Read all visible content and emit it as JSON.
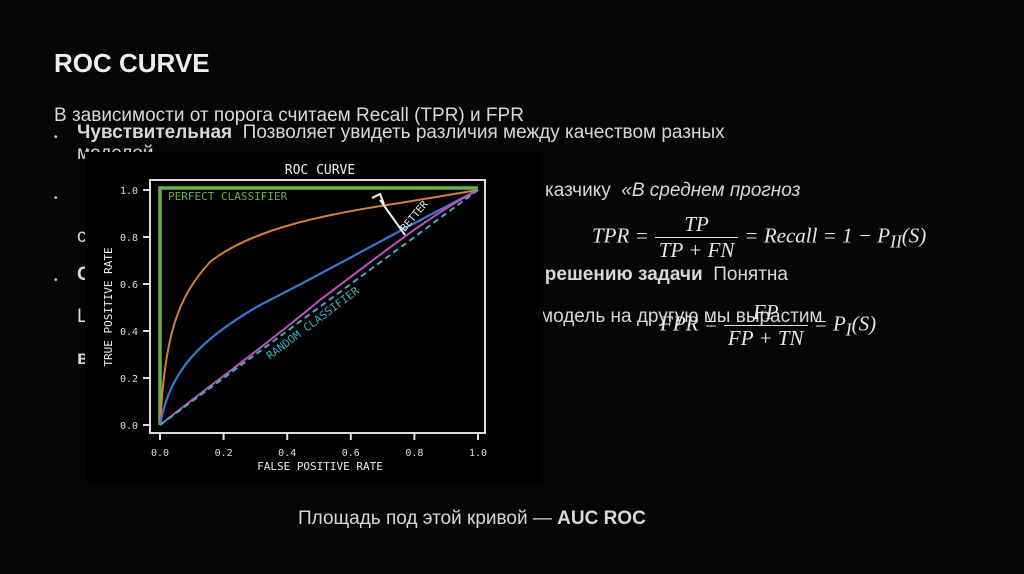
{
  "header": {
    "title": "ROC CURVE"
  },
  "intro": "В зависимости от порога считаем Recall (TPR) и FPR",
  "bullets": [
    {
      "bold": "Чувствительная",
      "text": "Позволяет увидеть различия между качеством разных",
      "more": "моделей"
    },
    {
      "text": "казчику",
      "italic": "«В среднем прогноз",
      "more": "с"
    },
    {
      "bold": "к решению задачи",
      "text": "Понятна",
      "line2": "модель на другую мы вырастим",
      "start1": "С",
      "start2": "L",
      "start3": "в"
    }
  ],
  "formulas": {
    "tpr": {
      "lhs": "TPR =",
      "num": "TP",
      "den": "TP + FN",
      "rhs": "= Recall = 1 − P",
      "sub": "II",
      "tail": "(S)"
    },
    "fpr": {
      "lhs": "FPR =",
      "num": "FP",
      "den": "FP + TN",
      "rhs": "= P",
      "sub": "I",
      "tail": "(S)"
    }
  },
  "figure": {
    "title": "ROC CURVE",
    "xlabel": "FALSE POSITIVE RATE",
    "ylabel": "TRUE POSITIVE RATE",
    "ticks": [
      "0.0",
      "0.2",
      "0.4",
      "0.6",
      "0.8",
      "1.0"
    ],
    "perfect": "PERFECT CLASSIFIER",
    "random": "RANDOM CLASSIFIER",
    "better": "BETTER"
  },
  "footer": {
    "text": "Площадь под этой кривой —",
    "bold": "AUC ROC"
  }
}
